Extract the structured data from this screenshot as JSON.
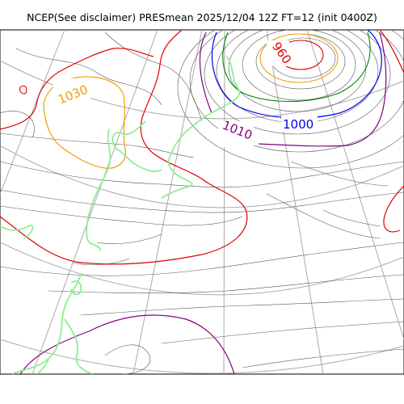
{
  "title": "NCEP(See disclaimer) PRESmean 2025/12/04 12Z FT=12 (init 0400Z)",
  "contour_labels": [
    {
      "text": "960",
      "color": "#e00000"
    },
    {
      "text": "1000",
      "color": "#0000ee"
    },
    {
      "text": "1010",
      "color": "#800080"
    },
    {
      "text": "1030",
      "color": "#f0a000"
    }
  ],
  "colors": {
    "grid": "#aaaaaa",
    "coastline": "#90ee90",
    "isobar_default": "#555555",
    "isobar_960": "#e00000",
    "isobar_980": "#f0a000",
    "isobar_990": "#008800",
    "isobar_1000": "#0000ee",
    "isobar_1010": "#800080",
    "isobar_1020": "#e00000",
    "isobar_1030": "#f0a000"
  }
}
